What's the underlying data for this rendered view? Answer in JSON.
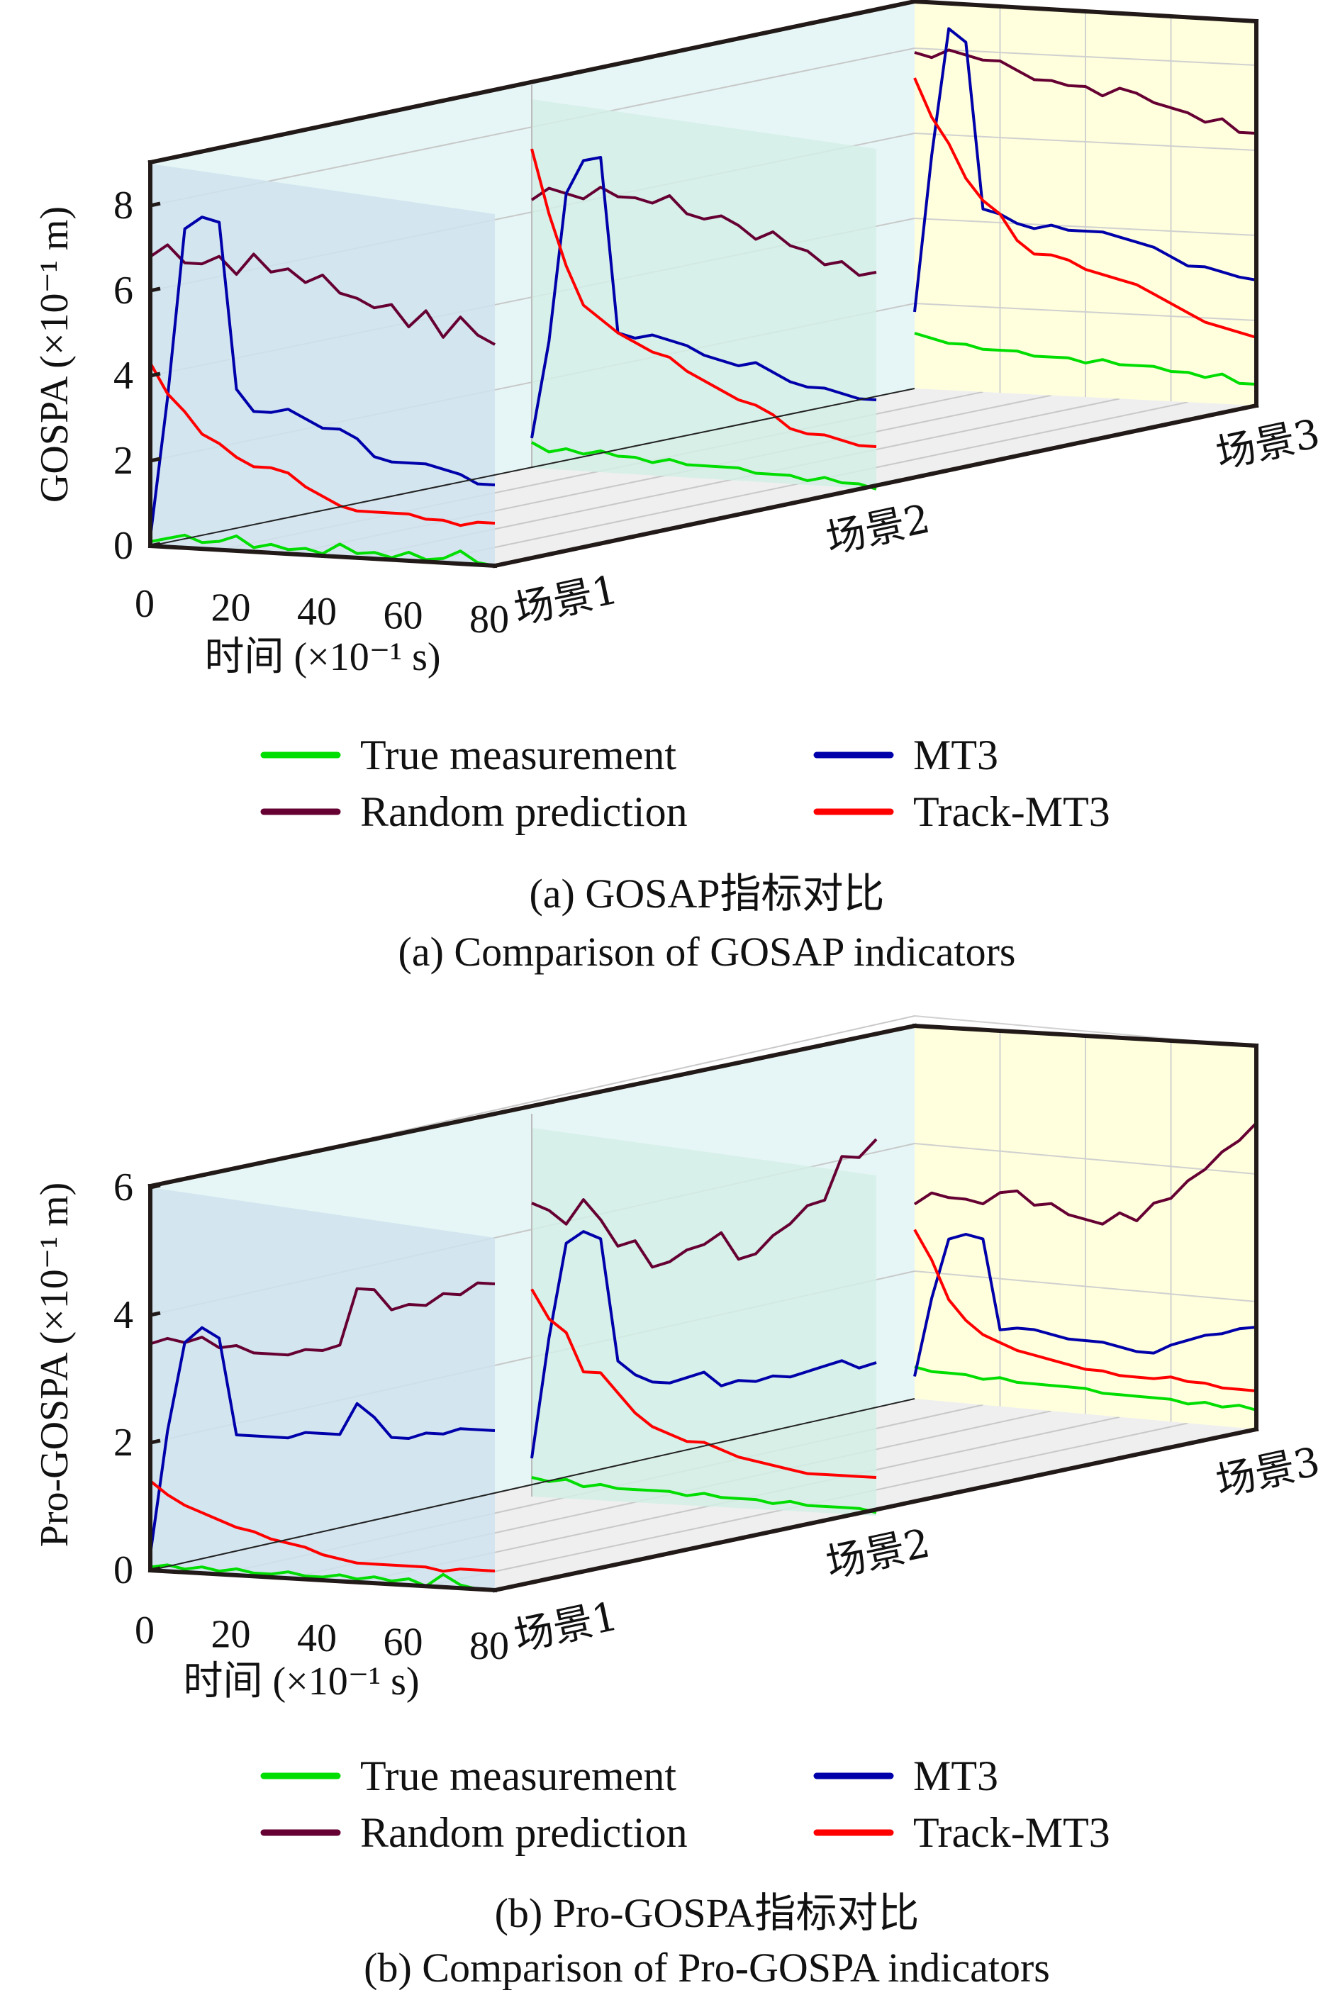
{
  "colors": {
    "true_measurement": "#00dd00",
    "random_prediction": "#660033",
    "mt3": "#0000aa",
    "track_mt3": "#ff0000",
    "scene1_fill": "#cfe3ee",
    "scene2_fill": "#d3eee6",
    "scene3_fill": "#ffffdd",
    "box_fill": "#e6f6f6",
    "floor_fill": "#efefef"
  },
  "chart_data": [
    {
      "type": "line",
      "title": "",
      "ylabel": "GOSPA (×10⁻¹ m)",
      "xlabel": "时间 (×10⁻¹ s)",
      "xlim": [
        0,
        80
      ],
      "ylim": [
        0,
        9
      ],
      "xticks": [
        "0",
        "20",
        "40",
        "60",
        "80"
      ],
      "yticks": [
        "0",
        "2",
        "4",
        "6",
        "8"
      ],
      "scenes": [
        "场景1",
        "场景2",
        "场景3"
      ],
      "x": [
        0,
        4,
        8,
        12,
        16,
        20,
        24,
        28,
        32,
        36,
        40,
        44,
        48,
        52,
        56,
        60,
        64,
        68,
        72,
        76,
        80
      ],
      "legend": {
        "placement": "bottom",
        "entries": [
          "True measurement",
          "MT3",
          "Random prediction",
          "Track-MT3"
        ]
      },
      "caption_cn": "(a) GOSAP指标对比",
      "caption_en": "(a) Comparison of GOSAP indicators",
      "series": {
        "scene1": {
          "true_measurement": [
            0.1,
            0.2,
            0.3,
            0.15,
            0.2,
            0.35,
            0.1,
            0.2,
            0.1,
            0.15,
            0.05,
            0.3,
            0.1,
            0.15,
            0.05,
            0.2,
            0.05,
            0.1,
            0.3,
            0.05,
            0.0
          ],
          "random_prediction": [
            6.8,
            7.1,
            6.7,
            6.7,
            6.9,
            6.5,
            7.0,
            6.6,
            6.7,
            6.4,
            6.6,
            6.2,
            6.1,
            5.9,
            6.0,
            5.5,
            5.9,
            5.3,
            5.8,
            5.4,
            5.2
          ],
          "mt3": [
            0.2,
            3.5,
            7.5,
            7.8,
            7.7,
            3.8,
            3.3,
            3.3,
            3.4,
            3.2,
            3.0,
            3.0,
            2.8,
            2.4,
            2.3,
            2.3,
            2.3,
            2.2,
            2.1,
            1.9,
            1.9
          ],
          "track_mt3": [
            4.3,
            3.6,
            3.2,
            2.7,
            2.5,
            2.2,
            2.0,
            2.0,
            1.9,
            1.6,
            1.4,
            1.2,
            1.1,
            1.1,
            1.1,
            1.1,
            1.0,
            1.0,
            0.9,
            1.0,
            1.0
          ]
        },
        "scene2": {
          "true_measurement": [
            0.6,
            0.4,
            0.5,
            0.4,
            0.5,
            0.4,
            0.4,
            0.3,
            0.4,
            0.3,
            0.3,
            0.3,
            0.3,
            0.2,
            0.2,
            0.2,
            0.1,
            0.2,
            0.1,
            0.1,
            0.0
          ],
          "random_prediction": [
            6.3,
            6.6,
            6.5,
            6.4,
            6.7,
            6.5,
            6.5,
            6.4,
            6.6,
            6.2,
            6.1,
            6.2,
            6.0,
            5.7,
            5.9,
            5.6,
            5.5,
            5.2,
            5.3,
            5.0,
            5.1
          ],
          "mt3": [
            0.7,
            3.0,
            6.5,
            7.3,
            7.4,
            3.3,
            3.2,
            3.3,
            3.2,
            3.1,
            2.9,
            2.8,
            2.7,
            2.8,
            2.6,
            2.4,
            2.3,
            2.3,
            2.2,
            2.1,
            2.1
          ],
          "track_mt3": [
            7.5,
            6.0,
            4.8,
            3.9,
            3.6,
            3.3,
            3.1,
            2.9,
            2.8,
            2.5,
            2.3,
            2.1,
            1.9,
            1.8,
            1.6,
            1.3,
            1.2,
            1.2,
            1.1,
            1.0,
            1.0
          ]
        },
        "scene3": {
          "true_measurement": [
            1.3,
            1.2,
            1.1,
            1.1,
            1.0,
            1.0,
            1.0,
            0.9,
            0.9,
            0.9,
            0.8,
            0.9,
            0.8,
            0.8,
            0.8,
            0.7,
            0.7,
            0.6,
            0.7,
            0.5,
            0.5
          ],
          "random_prediction": [
            7.9,
            7.8,
            8.0,
            7.9,
            7.8,
            7.8,
            7.6,
            7.4,
            7.4,
            7.3,
            7.3,
            7.1,
            7.3,
            7.2,
            7.0,
            6.9,
            6.8,
            6.6,
            6.7,
            6.4,
            6.4
          ],
          "mt3": [
            1.8,
            5.5,
            8.5,
            8.2,
            4.3,
            4.2,
            4.0,
            3.9,
            4.0,
            3.9,
            3.9,
            3.9,
            3.8,
            3.7,
            3.6,
            3.4,
            3.2,
            3.2,
            3.1,
            3.0,
            2.95
          ],
          "track_mt3": [
            7.3,
            6.4,
            5.8,
            5.0,
            4.5,
            4.2,
            3.6,
            3.3,
            3.3,
            3.2,
            3.0,
            2.9,
            2.8,
            2.7,
            2.5,
            2.3,
            2.1,
            1.9,
            1.8,
            1.7,
            1.6
          ]
        }
      }
    },
    {
      "type": "line",
      "title": "",
      "ylabel": "Pro-GOSPA (×10⁻¹ m)",
      "xlabel": "时间 (×10⁻¹ s)",
      "xlim": [
        0,
        80
      ],
      "ylim": [
        0,
        6
      ],
      "xticks": [
        "0",
        "20",
        "40",
        "60",
        "80"
      ],
      "yticks": [
        "0",
        "2",
        "4",
        "6"
      ],
      "scenes": [
        "场景1",
        "场景2",
        "场景3"
      ],
      "x": [
        0,
        4,
        8,
        12,
        16,
        20,
        24,
        28,
        32,
        36,
        40,
        44,
        48,
        52,
        56,
        60,
        64,
        68,
        72,
        76,
        80
      ],
      "legend": {
        "placement": "bottom",
        "entries": [
          "True measurement",
          "MT3",
          "Random prediction",
          "Track-MT3"
        ]
      },
      "caption_cn": "(b) Pro-GOSPA指标对比",
      "caption_en": "(b) Comparison of Pro-GOSPA indicators",
      "series": {
        "scene1": {
          "true_measurement": [
            0.05,
            0.1,
            0.05,
            0.1,
            0.05,
            0.1,
            0.05,
            0.05,
            0.1,
            0.05,
            0.05,
            0.1,
            0.05,
            0.1,
            0.05,
            0.1,
            0.0,
            0.2,
            0.05,
            0.0,
            0.0
          ],
          "random_prediction": [
            3.55,
            3.65,
            3.6,
            3.7,
            3.55,
            3.6,
            3.5,
            3.5,
            3.5,
            3.6,
            3.6,
            3.7,
            4.6,
            4.6,
            4.3,
            4.4,
            4.4,
            4.6,
            4.6,
            4.8,
            4.8
          ],
          "mt3": [
            0.25,
            2.2,
            3.6,
            3.85,
            3.7,
            2.2,
            2.2,
            2.2,
            2.2,
            2.3,
            2.3,
            2.3,
            2.8,
            2.6,
            2.3,
            2.3,
            2.4,
            2.4,
            2.5,
            2.5,
            2.5
          ],
          "track_mt3": [
            1.4,
            1.2,
            1.05,
            0.95,
            0.85,
            0.75,
            0.7,
            0.6,
            0.55,
            0.5,
            0.4,
            0.35,
            0.3,
            0.3,
            0.3,
            0.3,
            0.3,
            0.25,
            0.3,
            0.3,
            0.3
          ]
        },
        "scene2": {
          "true_measurement": [
            0.3,
            0.25,
            0.3,
            0.2,
            0.25,
            0.2,
            0.2,
            0.2,
            0.2,
            0.15,
            0.2,
            0.15,
            0.15,
            0.15,
            0.1,
            0.15,
            0.1,
            0.1,
            0.1,
            0.1,
            0.05
          ],
          "random_prediction": [
            4.6,
            4.5,
            4.3,
            4.7,
            4.4,
            4.0,
            4.1,
            3.7,
            3.8,
            4.0,
            4.1,
            4.3,
            3.9,
            4.0,
            4.3,
            4.5,
            4.8,
            4.9,
            5.6,
            5.6,
            5.9
          ],
          "mt3": [
            0.6,
            2.5,
            4.0,
            4.2,
            4.1,
            2.2,
            2.0,
            1.9,
            1.9,
            2.0,
            2.1,
            1.9,
            2.0,
            2.0,
            2.1,
            2.1,
            2.2,
            2.3,
            2.4,
            2.3,
            2.4
          ],
          "track_mt3": [
            3.25,
            2.8,
            2.6,
            2.0,
            2.0,
            1.7,
            1.4,
            1.2,
            1.1,
            1.0,
            1.0,
            0.9,
            0.8,
            0.75,
            0.7,
            0.65,
            0.6,
            0.6,
            0.6,
            0.6,
            0.6
          ]
        },
        "scene3": {
          "true_measurement": [
            0.5,
            0.45,
            0.45,
            0.45,
            0.4,
            0.45,
            0.4,
            0.4,
            0.4,
            0.4,
            0.4,
            0.35,
            0.35,
            0.35,
            0.35,
            0.35,
            0.3,
            0.35,
            0.3,
            0.35,
            0.3
          ],
          "random_prediction": [
            3.05,
            3.25,
            3.2,
            3.2,
            3.15,
            3.35,
            3.4,
            3.2,
            3.25,
            3.1,
            3.05,
            3.0,
            3.2,
            3.1,
            3.4,
            3.5,
            3.8,
            4.0,
            4.3,
            4.5,
            4.8
          ],
          "mt3": [
            0.35,
            1.6,
            2.55,
            2.65,
            2.6,
            1.2,
            1.25,
            1.25,
            1.2,
            1.15,
            1.15,
            1.15,
            1.1,
            1.05,
            1.05,
            1.2,
            1.3,
            1.4,
            1.45,
            1.55,
            1.6
          ],
          "track_mt3": [
            2.65,
            2.2,
            1.6,
            1.3,
            1.1,
            1.0,
            0.9,
            0.85,
            0.8,
            0.75,
            0.7,
            0.7,
            0.65,
            0.65,
            0.65,
            0.7,
            0.65,
            0.65,
            0.6,
            0.6,
            0.6
          ]
        }
      }
    }
  ]
}
